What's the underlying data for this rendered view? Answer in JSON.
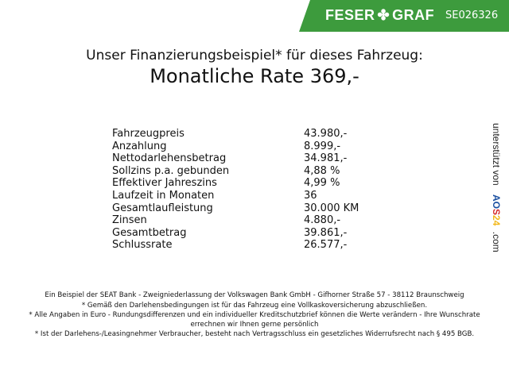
{
  "header": {
    "brand": "FESER",
    "brand2": "GRAF",
    "brand_icon": "clover-icon",
    "code": "SE026326",
    "color": "#3d9b3d"
  },
  "title": {
    "line1": "Unser Finanzierungsbeispiel* für dieses Fahrzeug:",
    "line2": "Monatliche Rate 369,-"
  },
  "rows": [
    {
      "label": "Fahrzeugpreis",
      "value": "43.980,-"
    },
    {
      "label": "Anzahlung",
      "value": "8.999,-"
    },
    {
      "label": "Nettodarlehensbetrag",
      "value": "34.981,-"
    },
    {
      "label": "Sollzins p.a. gebunden",
      "value": "4,88 %"
    },
    {
      "label": "Effektiver Jahreszins",
      "value": "4,99 %"
    },
    {
      "label": "Laufzeit in Monaten",
      "value": "36"
    },
    {
      "label": "Gesamtlaufleistung",
      "value": "30.000 KM"
    },
    {
      "label": "Zinsen",
      "value": "4.880,-"
    },
    {
      "label": "Gesamtbetrag",
      "value": "39.861,-"
    },
    {
      "label": "Schlussrate",
      "value": "26.577,-"
    }
  ],
  "side": {
    "text": "unterstützt von",
    "logo": "AOS24",
    "suffix": ".com"
  },
  "footer": [
    "Ein Beispiel der SEAT Bank - Zweigniederlassung der Volkswagen Bank GmbH - Gifhorner Straße 57 - 38112 Braunschweig",
    "* Gemäß den Darlehensbedingungen ist für das Fahrzeug eine Vollkaskoversicherung abzuschließen.",
    "* Alle Angaben in Euro - Rundungsdifferenzen und ein individueller Kreditschutzbrief können die Werte verändern - Ihre Wunschrate errechnen wir Ihnen gerne persönlich",
    "* Ist der Darlehens-/Leasingnehmer Verbraucher, besteht nach Vertragsschluss ein gesetzliches Widerrufsrecht nach § 495 BGB."
  ]
}
